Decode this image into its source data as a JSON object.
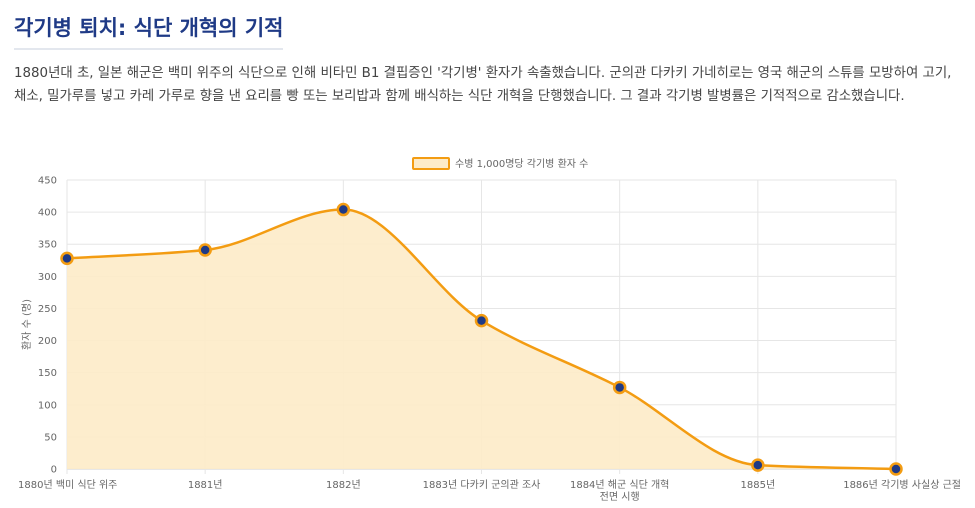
{
  "page": {
    "title": "각기병 퇴치: 식단 개혁의 기적",
    "description": "1880년대 초, 일본 해군은 백미 위주의 식단으로 인해 비타민 B1 결핍증인 '각기병' 환자가 속출했습니다. 군의관 다카키 가네히로는 영국 해군의 스튜를 모방하여 고기, 채소, 밀가루를 넣고 카레 가루로 향을 낸 요리를 빵 또는 보리밥과 함께 배식하는 식단 개혁을 단행했습니다. 그 결과 각기병 발병률은 기적적으로 감소했습니다."
  },
  "chart_data": {
    "type": "area",
    "categories": [
      [
        "1880년 백미 식단 위주"
      ],
      [
        "1881년"
      ],
      [
        "1882년"
      ],
      [
        "1883년 다카키 군의관 조사"
      ],
      [
        "1884년 해군 식단 개혁",
        "전면 시행"
      ],
      [
        "1885년"
      ],
      [
        "1886년 각기병 사실상 근절"
      ]
    ],
    "series": [
      {
        "name": "수병 1,000명당 각기병 환자 수",
        "values": [
          328,
          341,
          404,
          231,
          127,
          6,
          0
        ]
      }
    ],
    "ylabel": "환자 수 (명)",
    "ylim": [
      0,
      450
    ],
    "yticks": [
      0,
      50,
      100,
      150,
      200,
      250,
      300,
      350,
      400,
      450
    ],
    "grid": true,
    "legend": "top-center",
    "colors": {
      "line": "#f39c12",
      "fill": "#fdebc8",
      "point": "#1f3a86"
    }
  }
}
